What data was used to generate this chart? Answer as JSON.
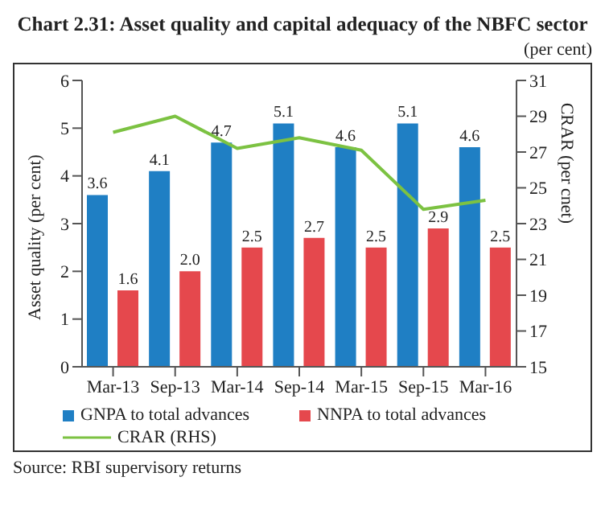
{
  "chart_data": {
    "type": "bar",
    "title": "Chart 2.31: Asset quality and capital adequacy of the NBFC sector",
    "subtitle": "(per cent)",
    "ylabel": "Asset quality (per cent)",
    "y2label": "CRAR (per cnet)",
    "categories": [
      "Mar-13",
      "Sep-13",
      "Mar-14",
      "Sep-14",
      "Mar-15",
      "Sep-15",
      "Mar-16"
    ],
    "series": [
      {
        "name": "GNPA to total advances",
        "color": "#1f7fc4",
        "values": [
          3.6,
          4.1,
          4.7,
          5.1,
          4.6,
          5.1,
          4.6
        ],
        "value_labels": [
          "3.6",
          "4.1",
          "4.7",
          "5.1",
          "4.6",
          "5.1",
          "4.6"
        ]
      },
      {
        "name": "NNPA to total advances",
        "color": "#e5484d",
        "values": [
          1.6,
          2.0,
          2.5,
          2.7,
          2.5,
          2.9,
          2.5
        ],
        "value_labels": [
          "1.6",
          "2.0",
          "2.5",
          "2.7",
          "2.5",
          "2.9",
          "2.5"
        ]
      },
      {
        "name": "CRAR (RHS)",
        "type": "line",
        "axis": "y2",
        "color": "#7cc242",
        "values": [
          28.1,
          29.0,
          27.2,
          27.8,
          27.1,
          23.8,
          24.3
        ]
      }
    ],
    "ylim": [
      0,
      6
    ],
    "yticks": [
      0,
      1,
      2,
      3,
      4,
      5,
      6
    ],
    "y2lim": [
      15,
      31
    ],
    "y2ticks": [
      15,
      17,
      19,
      21,
      23,
      25,
      27,
      29,
      31
    ],
    "grid": false,
    "legend": "bottom",
    "marker": "none",
    "line_style": "solid",
    "annotations": [
      "Source: RBI supervisory returns"
    ]
  }
}
